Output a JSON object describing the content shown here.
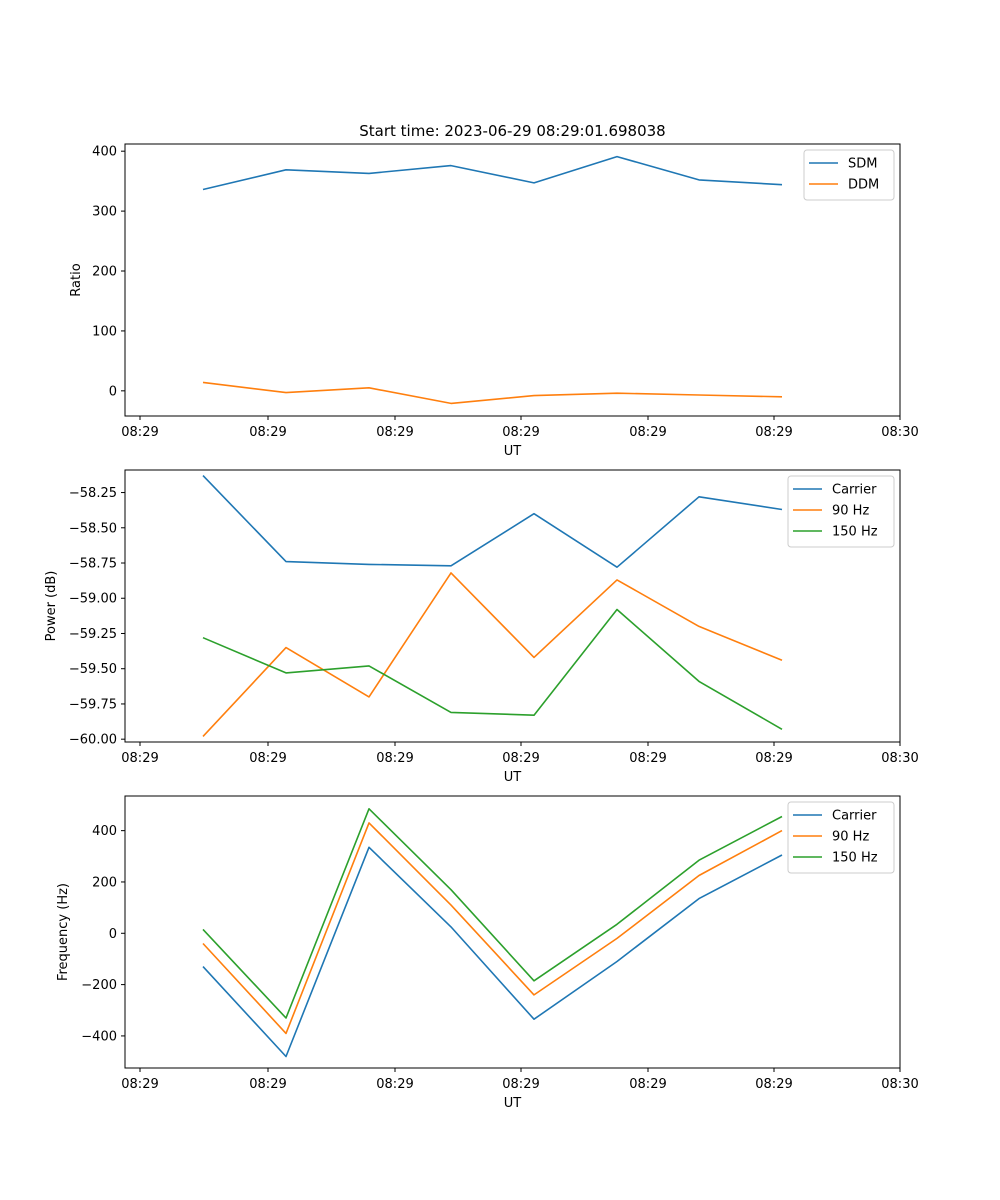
{
  "title": "Start time: 2023-06-29 08:29:01.698038",
  "colors": {
    "c0": "#1f77b4",
    "c1": "#ff7f0e",
    "c2": "#2ca02c"
  },
  "chart_data": [
    {
      "type": "line",
      "title": "Start time: 2023-06-29 08:29:01.698038",
      "xlabel": "UT",
      "ylabel": "Ratio",
      "x_tick_labels": [
        "08:29",
        "08:29",
        "08:29",
        "08:29",
        "08:29",
        "08:29",
        "08:30"
      ],
      "y_ticks": [
        0,
        100,
        200,
        300,
        400
      ],
      "y_tick_labels": [
        "0",
        "100",
        "200",
        "300",
        "400"
      ],
      "ylim": [
        -42,
        412
      ],
      "legend_location": "upper right",
      "series": [
        {
          "name": "SDM",
          "color": "#1f77b4",
          "values": [
            336,
            369,
            363,
            376,
            347,
            391,
            352,
            344
          ]
        },
        {
          "name": "DDM",
          "color": "#ff7f0e",
          "values": [
            14,
            -3,
            5,
            -21,
            -8,
            -4,
            -7,
            -10
          ]
        }
      ]
    },
    {
      "type": "line",
      "xlabel": "UT",
      "ylabel": "Power (dB)",
      "x_tick_labels": [
        "08:29",
        "08:29",
        "08:29",
        "08:29",
        "08:29",
        "08:29",
        "08:30"
      ],
      "y_ticks": [
        -60.0,
        -59.75,
        -59.5,
        -59.25,
        -59.0,
        -58.75,
        -58.5,
        -58.25
      ],
      "y_tick_labels": [
        "−60.00",
        "−59.75",
        "−59.50",
        "−59.25",
        "−59.00",
        "−58.75",
        "−58.50",
        "−58.25"
      ],
      "ylim": [
        -60.02,
        -58.09
      ],
      "legend_location": "upper right",
      "series": [
        {
          "name": "Carrier",
          "color": "#1f77b4",
          "values": [
            -58.13,
            -58.74,
            -58.76,
            -58.77,
            -58.4,
            -58.78,
            -58.28,
            -58.37
          ]
        },
        {
          "name": "90 Hz",
          "color": "#ff7f0e",
          "values": [
            -59.98,
            -59.35,
            -59.7,
            -58.82,
            -59.42,
            -58.87,
            -59.2,
            -59.44
          ]
        },
        {
          "name": "150 Hz",
          "color": "#2ca02c",
          "values": [
            -59.28,
            -59.53,
            -59.48,
            -59.81,
            -59.83,
            -59.08,
            -59.59,
            -59.93
          ]
        }
      ]
    },
    {
      "type": "line",
      "xlabel": "UT",
      "ylabel": "Frequency (Hz)",
      "x_tick_labels": [
        "08:29",
        "08:29",
        "08:29",
        "08:29",
        "08:29",
        "08:29",
        "08:30"
      ],
      "y_ticks": [
        -400,
        -200,
        0,
        200,
        400
      ],
      "y_tick_labels": [
        "−400",
        "−200",
        "0",
        "200",
        "400"
      ],
      "ylim": [
        -525,
        535
      ],
      "legend_location": "upper right",
      "series": [
        {
          "name": "Carrier",
          "color": "#1f77b4",
          "values": [
            -130,
            -480,
            335,
            25,
            -335,
            -110,
            135,
            305
          ]
        },
        {
          "name": "90 Hz",
          "color": "#ff7f0e",
          "values": [
            -40,
            -390,
            430,
            110,
            -240,
            -20,
            225,
            400
          ]
        },
        {
          "name": "150 Hz",
          "color": "#2ca02c",
          "values": [
            15,
            -330,
            485,
            170,
            -185,
            35,
            285,
            455
          ]
        }
      ]
    }
  ]
}
